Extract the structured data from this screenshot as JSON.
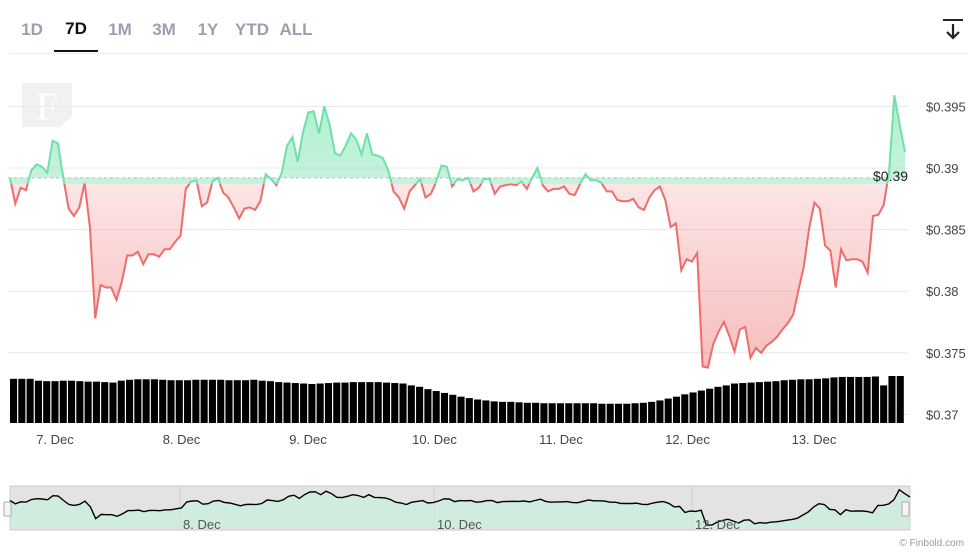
{
  "tabs": [
    {
      "label": "1D",
      "active": false
    },
    {
      "label": "7D",
      "active": true
    },
    {
      "label": "1M",
      "active": false
    },
    {
      "label": "3M",
      "active": false
    },
    {
      "label": "1Y",
      "active": false
    },
    {
      "label": "YTD",
      "active": false
    },
    {
      "label": "ALL",
      "active": false
    }
  ],
  "download_icon": "download-arrow-icon",
  "watermark_logo": "F",
  "credit": "© Finbold.com",
  "colors": {
    "up": "#6ee0a8",
    "down": "#ee6c6c",
    "volume": "#000000",
    "grid": "#e8e8e8"
  },
  "chart_data": {
    "type": "line",
    "x_labels": [
      "7. Dec",
      "8. Dec",
      "9. Dec",
      "10. Dec",
      "11. Dec",
      "12. Dec",
      "13. Dec"
    ],
    "y_ticks": [
      "$0.37",
      "$0.375",
      "$0.38",
      "$0.385",
      "$0.39",
      "$0.395"
    ],
    "ylim": [
      0.37,
      0.396
    ],
    "reference_value": 0.3892,
    "current_label": "$0.39",
    "grid": true,
    "series": [
      {
        "values": [
          0.3892,
          0.3871,
          0.3884,
          0.3882,
          0.3898,
          0.3903,
          0.3901,
          0.3896,
          0.3922,
          0.392,
          0.3892,
          0.3867,
          0.3861,
          0.3868,
          0.3888,
          0.3852,
          0.3778,
          0.3805,
          0.3803,
          0.3803,
          0.3793,
          0.3808,
          0.3829,
          0.3829,
          0.3832,
          0.3822,
          0.383,
          0.383,
          0.3828,
          0.3834,
          0.3834,
          0.384,
          0.3845,
          0.3883,
          0.3889,
          0.389,
          0.3869,
          0.3872,
          0.3889,
          0.3892,
          0.388,
          0.3876,
          0.3868,
          0.3859,
          0.3867,
          0.3868,
          0.3866,
          0.3873,
          0.3895,
          0.3891,
          0.3886,
          0.3896,
          0.3918,
          0.3925,
          0.3905,
          0.3929,
          0.3945,
          0.3946,
          0.3928,
          0.395,
          0.3935,
          0.3912,
          0.391,
          0.3918,
          0.3928,
          0.3923,
          0.3911,
          0.3928,
          0.3911,
          0.391,
          0.3908,
          0.3898,
          0.3881,
          0.3876,
          0.3867,
          0.3881,
          0.3886,
          0.3891,
          0.3876,
          0.3879,
          0.3889,
          0.3902,
          0.3901,
          0.3885,
          0.3891,
          0.389,
          0.3892,
          0.3881,
          0.3884,
          0.3891,
          0.3891,
          0.3879,
          0.3885,
          0.3886,
          0.3887,
          0.3886,
          0.3889,
          0.3883,
          0.3892,
          0.39,
          0.3886,
          0.3881,
          0.3883,
          0.3883,
          0.3885,
          0.3879,
          0.3878,
          0.3887,
          0.3895,
          0.389,
          0.389,
          0.3888,
          0.3881,
          0.3881,
          0.3874,
          0.3873,
          0.3873,
          0.3875,
          0.3868,
          0.3866,
          0.3876,
          0.3882,
          0.3885,
          0.3874,
          0.3852,
          0.3855,
          0.3817,
          0.3826,
          0.3824,
          0.3831,
          0.3739,
          0.3738,
          0.3757,
          0.3767,
          0.3775,
          0.3764,
          0.3751,
          0.3769,
          0.3771,
          0.3746,
          0.3754,
          0.375,
          0.3756,
          0.3759,
          0.3763,
          0.3769,
          0.3774,
          0.3781,
          0.3801,
          0.382,
          0.3851,
          0.3872,
          0.3867,
          0.3837,
          0.3833,
          0.3803,
          0.3834,
          0.3825,
          0.3826,
          0.3826,
          0.3824,
          0.3815,
          0.3861,
          0.3862,
          0.387,
          0.3896,
          0.3959,
          0.3935,
          0.3913
        ]
      }
    ],
    "volume_bars": [
      0.94,
      0.94,
      0.94,
      0.9,
      0.89,
      0.89,
      0.9,
      0.9,
      0.89,
      0.88,
      0.88,
      0.87,
      0.86,
      0.9,
      0.92,
      0.93,
      0.93,
      0.93,
      0.92,
      0.91,
      0.91,
      0.91,
      0.92,
      0.92,
      0.92,
      0.92,
      0.91,
      0.91,
      0.91,
      0.92,
      0.9,
      0.89,
      0.87,
      0.86,
      0.85,
      0.84,
      0.83,
      0.84,
      0.85,
      0.86,
      0.86,
      0.87,
      0.87,
      0.87,
      0.87,
      0.86,
      0.85,
      0.84,
      0.8,
      0.77,
      0.72,
      0.68,
      0.64,
      0.6,
      0.56,
      0.53,
      0.5,
      0.48,
      0.46,
      0.45,
      0.45,
      0.44,
      0.43,
      0.43,
      0.42,
      0.42,
      0.42,
      0.42,
      0.42,
      0.42,
      0.42,
      0.41,
      0.41,
      0.41,
      0.41,
      0.42,
      0.43,
      0.45,
      0.48,
      0.52,
      0.56,
      0.61,
      0.65,
      0.69,
      0.73,
      0.77,
      0.8,
      0.84,
      0.85,
      0.86,
      0.87,
      0.88,
      0.89,
      0.91,
      0.92,
      0.93,
      0.93,
      0.94,
      0.95,
      0.97,
      0.98,
      0.98,
      0.98,
      0.98,
      0.99,
      0.8,
      1.0,
      1.0
    ]
  },
  "navigator": {
    "labels": [
      "8. Dec",
      "10. Dec",
      "12. Dec"
    ]
  }
}
